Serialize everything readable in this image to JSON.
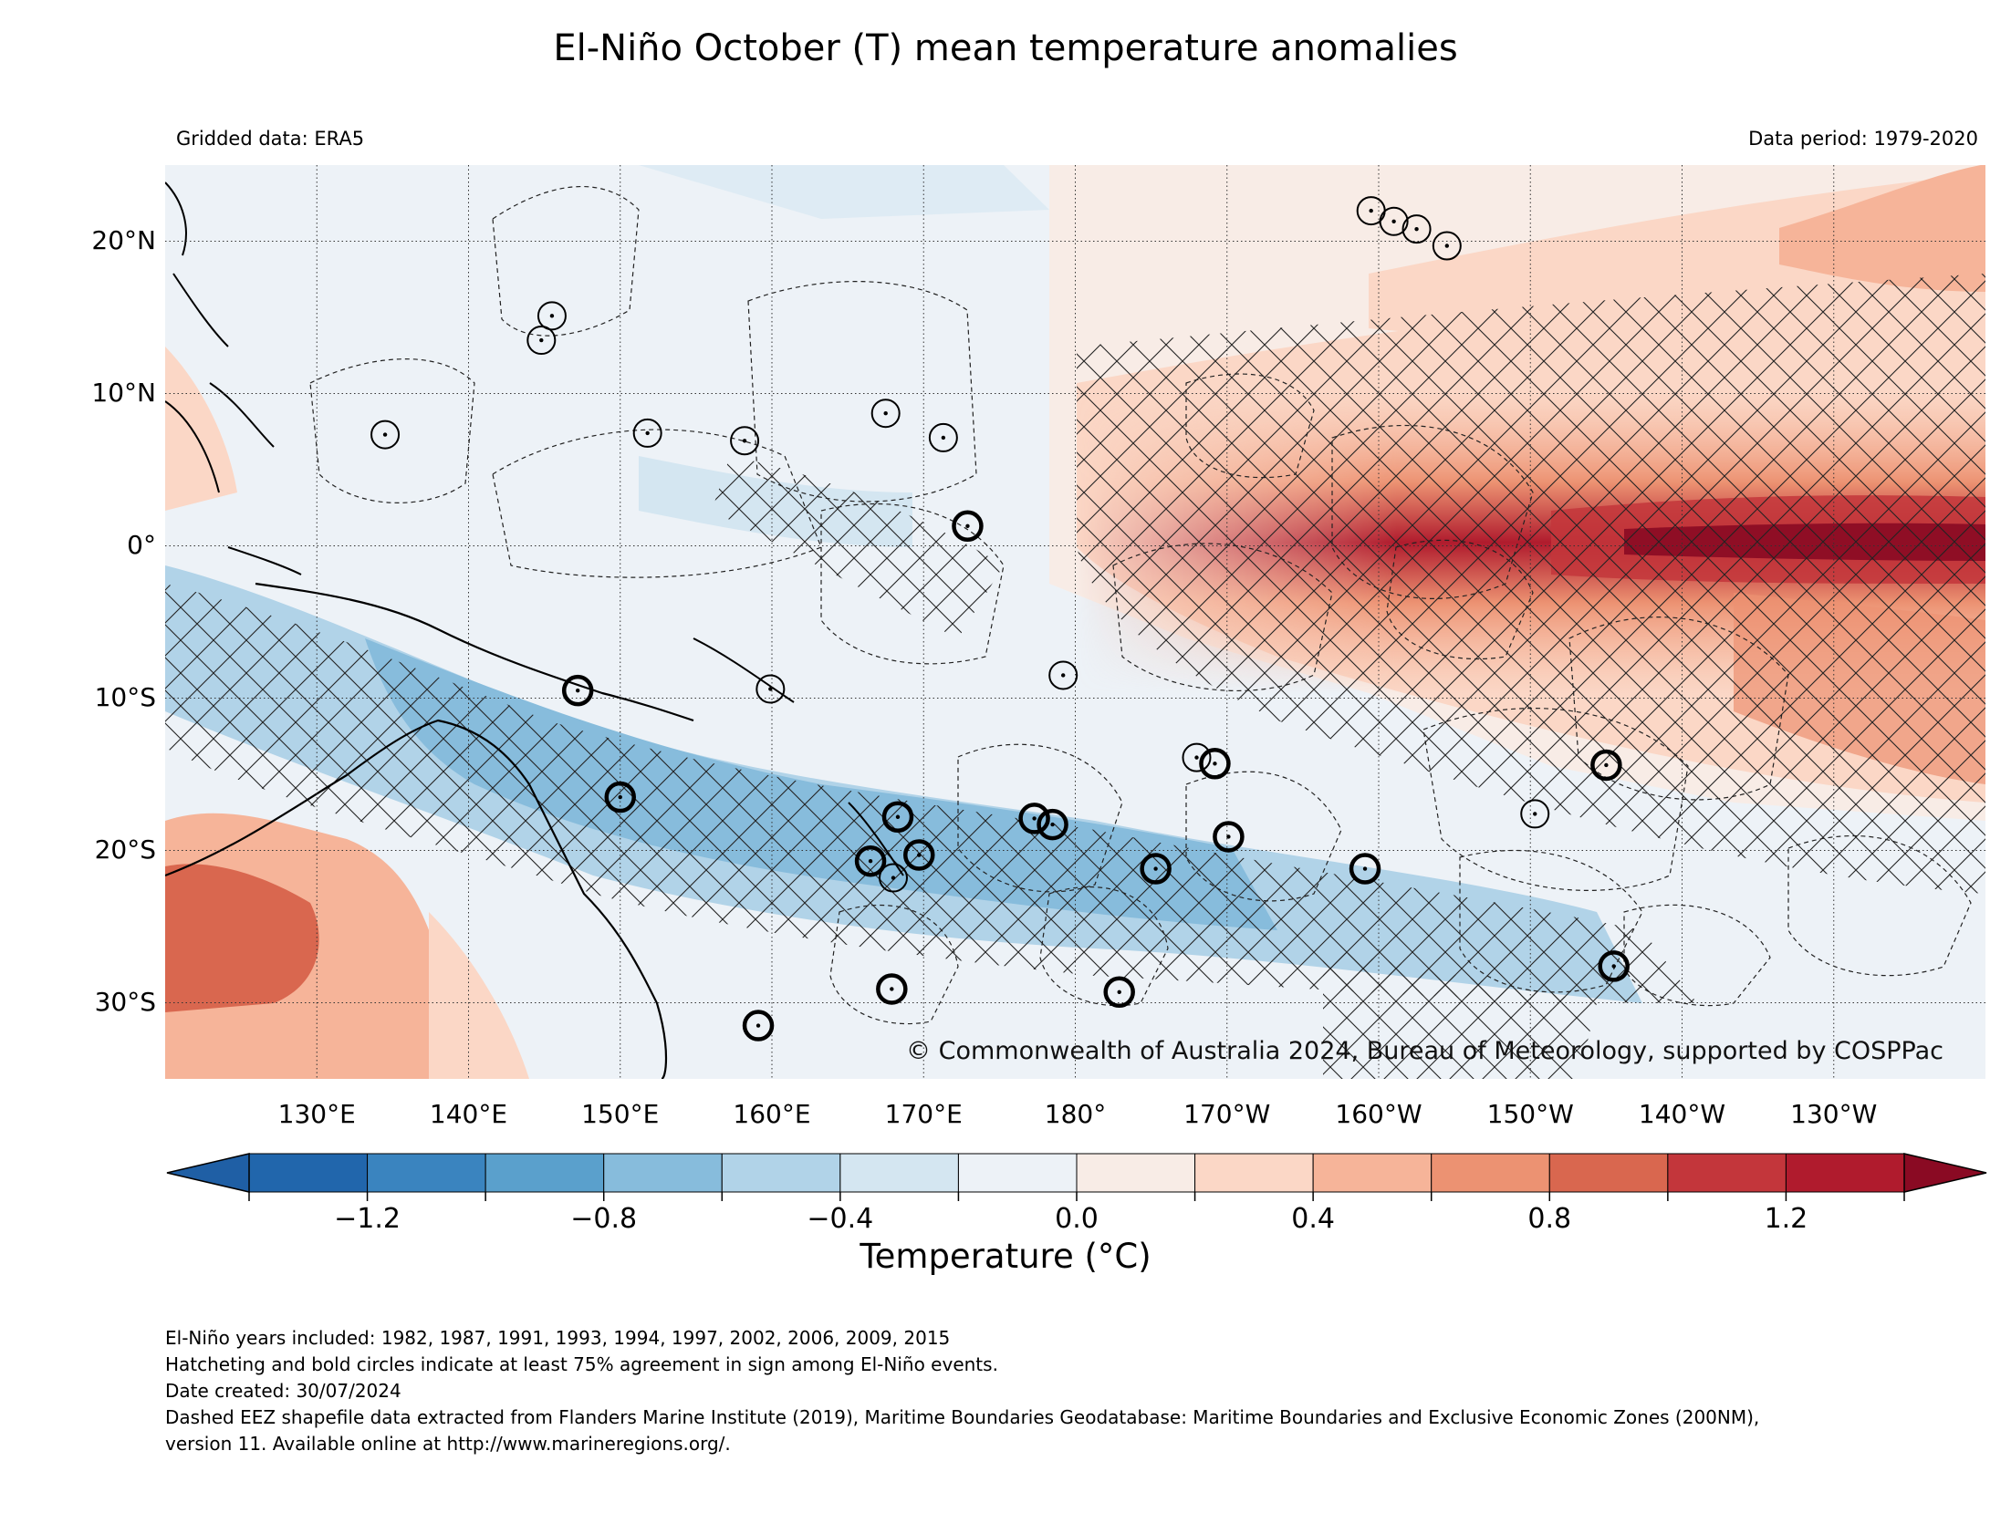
{
  "title": "El-Niño October (T) mean temperature anomalies",
  "gridded_data": "Gridded data: ERA5",
  "data_period": "Data period: 1979-2020",
  "copyright": "© Commonwealth of Australia 2024, Bureau of Meteorology, supported by COSPPac",
  "map": {
    "lon_range": [
      120,
      240
    ],
    "lat_range": [
      -35,
      25
    ],
    "lat_ticks": [
      {
        "value": 20,
        "label": "20°N"
      },
      {
        "value": 10,
        "label": "10°N"
      },
      {
        "value": 0,
        "label": "0°"
      },
      {
        "value": -10,
        "label": "10°S"
      },
      {
        "value": -20,
        "label": "20°S"
      },
      {
        "value": -30,
        "label": "30°S"
      }
    ],
    "lon_ticks": [
      {
        "value": 130,
        "label": "130°E"
      },
      {
        "value": 140,
        "label": "140°E"
      },
      {
        "value": 150,
        "label": "150°E"
      },
      {
        "value": 160,
        "label": "160°E"
      },
      {
        "value": 170,
        "label": "170°E"
      },
      {
        "value": 180,
        "label": "180°"
      },
      {
        "value": 190,
        "label": "170°W"
      },
      {
        "value": 200,
        "label": "160°W"
      },
      {
        "value": 210,
        "label": "150°W"
      },
      {
        "value": 220,
        "label": "140°W"
      },
      {
        "value": 230,
        "label": "130°W"
      }
    ],
    "gridlines": "dotted",
    "hatching": "crosshatch, at least 75% sign agreement",
    "station_circles": [
      {
        "lon": 199.5,
        "lat": 22.0,
        "bold": false
      },
      {
        "lon": 201.0,
        "lat": 21.3,
        "bold": false
      },
      {
        "lon": 202.5,
        "lat": 20.8,
        "bold": false
      },
      {
        "lon": 204.5,
        "lat": 19.7,
        "bold": false
      },
      {
        "lon": 145.5,
        "lat": 15.1,
        "bold": false
      },
      {
        "lon": 144.8,
        "lat": 13.5,
        "bold": false
      },
      {
        "lon": 134.5,
        "lat": 7.3,
        "bold": false
      },
      {
        "lon": 151.8,
        "lat": 7.4,
        "bold": false
      },
      {
        "lon": 158.2,
        "lat": 6.9,
        "bold": false
      },
      {
        "lon": 167.5,
        "lat": 8.7,
        "bold": false
      },
      {
        "lon": 171.3,
        "lat": 7.1,
        "bold": false
      },
      {
        "lon": 172.9,
        "lat": 1.3,
        "bold": true
      },
      {
        "lon": 179.2,
        "lat": -8.5,
        "bold": false
      },
      {
        "lon": 147.2,
        "lat": -9.5,
        "bold": true
      },
      {
        "lon": 159.9,
        "lat": -9.4,
        "bold": false
      },
      {
        "lon": 150.0,
        "lat": -16.5,
        "bold": true
      },
      {
        "lon": 168.3,
        "lat": -17.8,
        "bold": true
      },
      {
        "lon": 166.5,
        "lat": -20.7,
        "bold": true
      },
      {
        "lon": 168.0,
        "lat": -21.8,
        "bold": false
      },
      {
        "lon": 169.7,
        "lat": -20.3,
        "bold": true
      },
      {
        "lon": 177.3,
        "lat": -17.9,
        "bold": true
      },
      {
        "lon": 178.5,
        "lat": -18.3,
        "bold": true
      },
      {
        "lon": 185.3,
        "lat": -21.2,
        "bold": true
      },
      {
        "lon": 188.0,
        "lat": -13.9,
        "bold": false
      },
      {
        "lon": 189.2,
        "lat": -14.3,
        "bold": true
      },
      {
        "lon": 190.1,
        "lat": -19.1,
        "bold": true
      },
      {
        "lon": 199.1,
        "lat": -21.2,
        "bold": true
      },
      {
        "lon": 210.3,
        "lat": -17.6,
        "bold": false
      },
      {
        "lon": 215.0,
        "lat": -14.4,
        "bold": true
      },
      {
        "lon": 215.5,
        "lat": -27.6,
        "bold": true
      },
      {
        "lon": 167.9,
        "lat": -29.1,
        "bold": true
      },
      {
        "lon": 159.1,
        "lat": -31.5,
        "bold": true
      },
      {
        "lon": 182.9,
        "lat": -29.3,
        "bold": true
      }
    ]
  },
  "colorbar": {
    "title": "Temperature (°C)",
    "levels": [
      -1.4,
      -1.2,
      -1.0,
      -0.8,
      -0.6,
      -0.4,
      -0.2,
      0.0,
      0.2,
      0.4,
      0.6,
      0.8,
      1.0,
      1.2,
      1.4
    ],
    "colors": [
      "#2166ac",
      "#3a84bf",
      "#5aa0cc",
      "#87bcdc",
      "#b1d3e8",
      "#d4e6f1",
      "#edf2f7",
      "#f8ece6",
      "#fbd7c6",
      "#f6b499",
      "#ec9272",
      "#d9674f",
      "#c3363b",
      "#b01b2d"
    ],
    "under_color": "#1f5fa5",
    "over_color": "#8a0a23",
    "tick_labels": [
      "−1.2",
      "−0.8",
      "−0.4",
      "0.0",
      "0.4",
      "0.8",
      "1.2"
    ],
    "tick_values": [
      -1.2,
      -0.8,
      -0.4,
      0.0,
      0.4,
      0.8,
      1.2
    ],
    "extend": "both"
  },
  "footnotes": [
    "El-Niño years included: 1982, 1987, 1991, 1993, 1994, 1997, 2002, 2006, 2009, 2015",
    "Hatcheting and bold circles indicate at least 75% agreement in sign among El-Niño events.",
    "Date created: 30/07/2024",
    "Dashed EEZ shapefile data extracted from Flanders Marine Institute (2019), Maritime Boundaries Geodatabase: Maritime Boundaries and Exclusive Economic Zones (200NM),",
    "version 11. Available online at http://www.marineregions.org/."
  ]
}
